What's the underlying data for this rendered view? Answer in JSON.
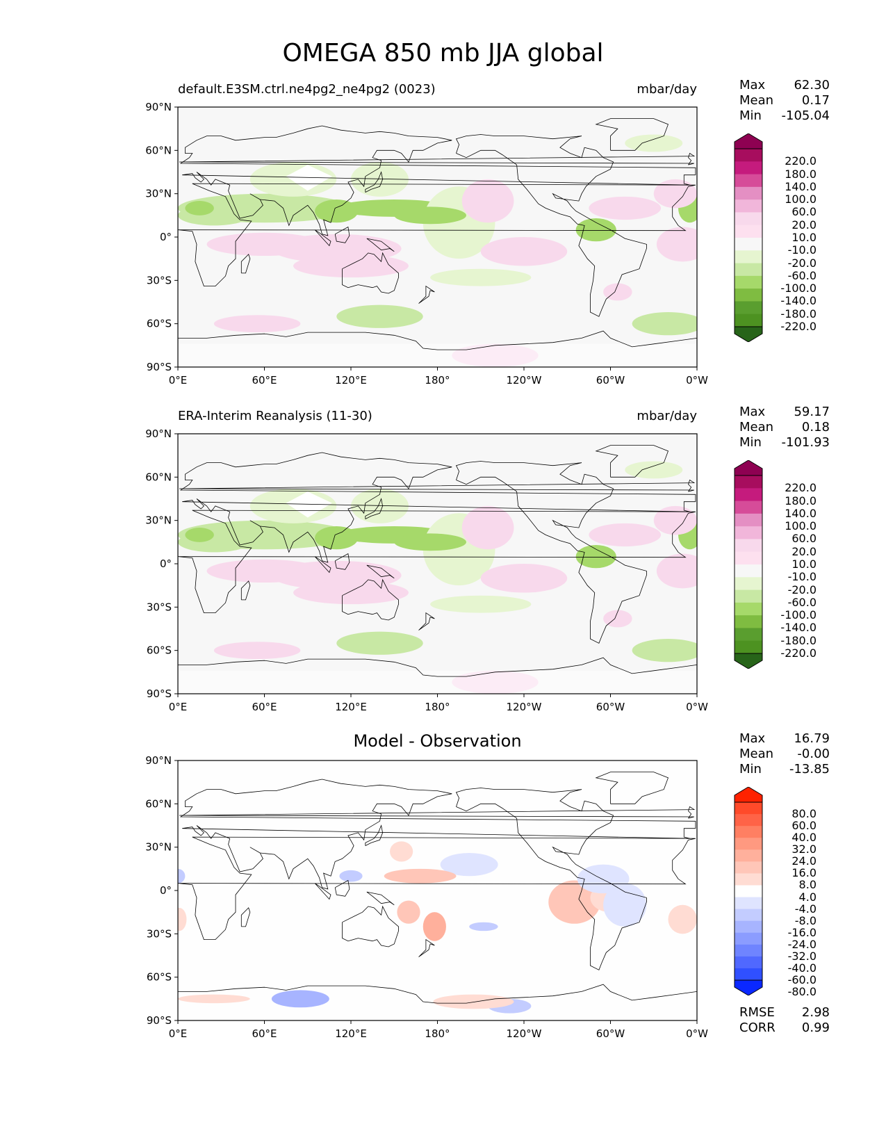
{
  "figure": {
    "title": "OMEGA 850 mb JJA global"
  },
  "axes": {
    "lat_ticks": [
      "90°N",
      "60°N",
      "30°N",
      "0°",
      "30°S",
      "60°S",
      "90°S"
    ],
    "lon_ticks": [
      "0°E",
      "60°E",
      "120°E",
      "180°",
      "120°W",
      "60°W",
      "0°W"
    ]
  },
  "panels": [
    {
      "title_left": "default.E3SM.ctrl.ne4pg2_ne4pg2 (0023)",
      "title_right": "mbar/day",
      "title_center": "",
      "stats": [
        {
          "label": "Max",
          "value": "62.30"
        },
        {
          "label": "Mean",
          "value": "0.17"
        },
        {
          "label": "Min",
          "value": "-105.04"
        }
      ],
      "colorbar": "field"
    },
    {
      "title_left": "ERA-Interim Reanalysis (11-30)",
      "title_right": "mbar/day",
      "title_center": "",
      "stats": [
        {
          "label": "Max",
          "value": "59.17"
        },
        {
          "label": "Mean",
          "value": "0.18"
        },
        {
          "label": "Min",
          "value": "-101.93"
        }
      ],
      "colorbar": "field"
    },
    {
      "title_left": "",
      "title_right": "",
      "title_center": "Model - Observation",
      "stats": [
        {
          "label": "Max",
          "value": "16.79"
        },
        {
          "label": "Mean",
          "value": "-0.00"
        },
        {
          "label": "Min",
          "value": "-13.85"
        }
      ],
      "metrics": [
        {
          "label": "RMSE",
          "value": "2.98"
        },
        {
          "label": "CORR",
          "value": "0.99"
        }
      ],
      "colorbar": "diff"
    }
  ],
  "colorbars": {
    "field": {
      "levels": [
        "220.0",
        "180.0",
        "140.0",
        "100.0",
        "60.0",
        "20.0",
        "10.0",
        "-10.0",
        "-20.0",
        "-60.0",
        "-100.0",
        "-140.0",
        "-180.0",
        "-220.0"
      ],
      "colors": [
        "#8e0152",
        "#a70d5e",
        "#c51b7d",
        "#d64c99",
        "#e48fc3",
        "#f1b6da",
        "#f8d9ec",
        "#fde0ef",
        "#f7f7f7",
        "#e6f5d0",
        "#c8e8a4",
        "#a6d96a",
        "#7fbc41",
        "#5a9e2f",
        "#4d9221",
        "#276419"
      ]
    },
    "diff": {
      "levels": [
        "80.0",
        "60.0",
        "40.0",
        "32.0",
        "24.0",
        "16.0",
        "8.0",
        "4.0",
        "-4.0",
        "-8.0",
        "-16.0",
        "-24.0",
        "-32.0",
        "-40.0",
        "-60.0",
        "-80.0"
      ],
      "colors": [
        "#ff2200",
        "#ff4a2a",
        "#ff6347",
        "#ff7f62",
        "#ff9980",
        "#ffb09c",
        "#ffc6b8",
        "#ffdcd3",
        "#ffffff",
        "#dfe4ff",
        "#c3ccff",
        "#a7b4ff",
        "#8b9cff",
        "#6f84ff",
        "#5068ff",
        "#3050ff",
        "#0a28ff"
      ]
    }
  }
}
